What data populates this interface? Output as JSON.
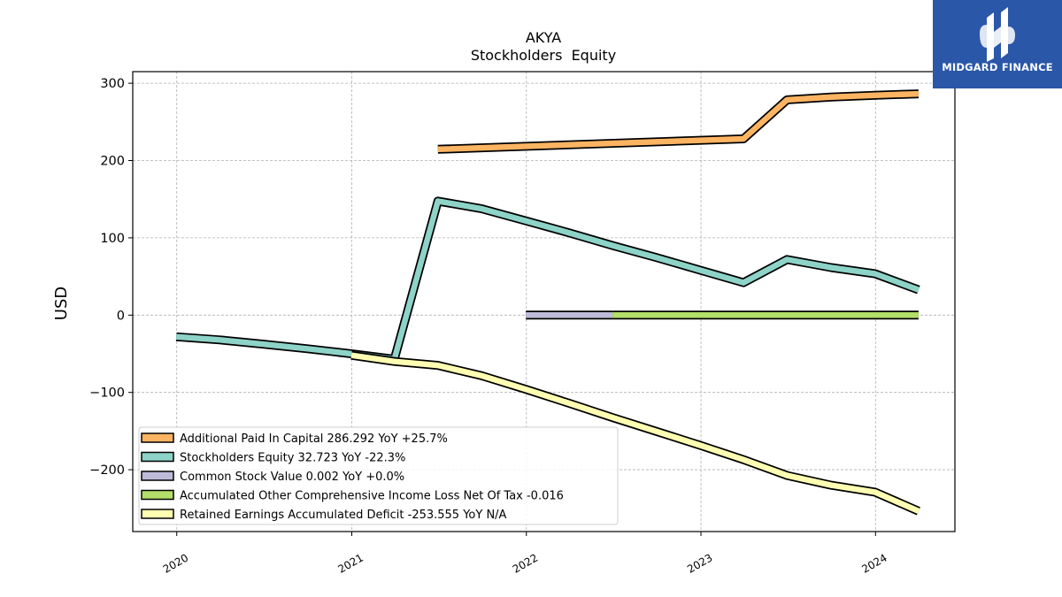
{
  "logo": {
    "text": "MIDGARD FINANCE"
  },
  "chart_data": {
    "type": "line",
    "title": "AKYA",
    "subtitle": "Stockholders  Equity",
    "ylabel": "USD",
    "xlabel": "",
    "xlim": [
      "2019-10-01",
      "2024-06-15"
    ],
    "ylim": [
      -280,
      315
    ],
    "yticks": [
      300,
      200,
      100,
      0,
      -100,
      -200
    ],
    "ytick_labels": [
      "300",
      "200",
      "100",
      "0",
      "−100",
      "−200"
    ],
    "xticks": [
      "2020-01-01",
      "2021-01-01",
      "2022-01-01",
      "2023-01-01",
      "2024-01-01"
    ],
    "xtick_labels": [
      "2020",
      "2021",
      "2022",
      "2023",
      "2024"
    ],
    "grid": true,
    "legend_position": "lower-left",
    "series": [
      {
        "name": "Additional Paid In Capital",
        "legend": "Additional Paid In Capital  286.292 YoY +25.7%",
        "color": "#fdb462",
        "x": [
          "2021-06-30",
          "2023-03-31",
          "2023-06-30",
          "2023-09-30",
          "2023-12-31",
          "2024-03-31"
        ],
        "y": [
          214.5,
          228.0,
          278.5,
          282.0,
          284.5,
          286.3
        ]
      },
      {
        "name": "Stockholders Equity",
        "legend": "Stockholders Equity  32.723 YoY -22.3%",
        "color": "#8dd3c7",
        "x": [
          "2019-12-31",
          "2020-03-31",
          "2020-06-30",
          "2020-09-30",
          "2020-12-31",
          "2021-03-31",
          "2021-06-30",
          "2021-09-30",
          "2021-12-31",
          "2022-03-31",
          "2022-06-30",
          "2022-09-30",
          "2022-12-31",
          "2023-03-31",
          "2023-06-30",
          "2023-09-30",
          "2023-12-31",
          "2024-03-31"
        ],
        "y": [
          -28.0,
          -32.0,
          -37.5,
          -43.5,
          -50.0,
          -57.0,
          147.5,
          137.5,
          122.0,
          106.5,
          90.0,
          74.5,
          58.0,
          42.0,
          72.0,
          61.5,
          53.5,
          32.7
        ]
      },
      {
        "name": "Common Stock Value",
        "legend": "Common Stock Value  0.002 YoY +0.0%",
        "color": "#bebada",
        "x": [
          "2021-12-31",
          "2022-06-30"
        ],
        "y": [
          0.002,
          0.002
        ]
      },
      {
        "name": "Accumulated Other Comprehensive Income Loss Net Of Tax",
        "legend": "Accumulated Other Comprehensive Income Loss Net Of Tax  -0.016",
        "color": "#b3de69",
        "x": [
          "2022-06-30",
          "2024-03-31"
        ],
        "y": [
          -0.016,
          -0.016
        ]
      },
      {
        "name": "Retained Earnings Accumulated Deficit",
        "legend": "Retained Earnings Accumulated Deficit  -253.555 YoY N/A",
        "color": "#ffffb3",
        "x": [
          "2020-12-31",
          "2021-03-31",
          "2021-06-30",
          "2021-09-30",
          "2021-12-31",
          "2022-03-31",
          "2022-06-30",
          "2022-09-30",
          "2022-12-31",
          "2023-03-31",
          "2023-06-30",
          "2023-09-30",
          "2023-12-31",
          "2024-03-31"
        ],
        "y": [
          -52.0,
          -60.0,
          -65.0,
          -78.5,
          -96.0,
          -114.0,
          -132.5,
          -150.5,
          -168.5,
          -187.0,
          -207.5,
          -220.0,
          -229.0,
          -253.6
        ]
      }
    ]
  }
}
